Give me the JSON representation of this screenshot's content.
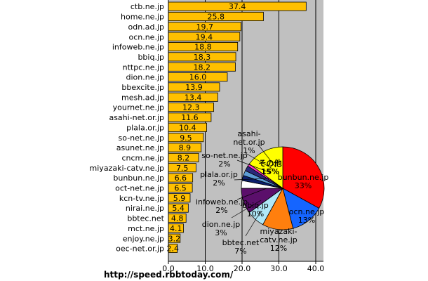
{
  "footer_url": "http://speed.rbbtoday.com/",
  "chart_data": [
    {
      "type": "bar",
      "orientation": "horizontal",
      "categories": [
        "ctb.ne.jp",
        "home.ne.jp",
        "odn.ad.jp",
        "ocn.ne.jp",
        "infoweb.ne.jp",
        "bbiq.jp",
        "nttpc.ne.jp",
        "dion.ne.jp",
        "bbexcite.jp",
        "mesh.ad.jp",
        "yournet.ne.jp",
        "asahi-net.or.jp",
        "plala.or.jp",
        "so-net.ne.jp",
        "asunet.ne.jp",
        "cncm.ne.jp",
        "miyazaki-catv.ne.jp",
        "bunbun.ne.jp",
        "oct-net.ne.jp",
        "kcn-tv.ne.jp",
        "nirai.ne.jp",
        "bbtec.net",
        "mct.ne.jp",
        "enjoy.ne.jp",
        "oec-net.or.jp"
      ],
      "values": [
        37.4,
        25.8,
        19.7,
        19.4,
        18.8,
        18.3,
        18.2,
        16.0,
        13.9,
        13.4,
        12.3,
        11.6,
        10.4,
        9.5,
        8.9,
        8.2,
        7.5,
        6.6,
        6.5,
        5.9,
        5.4,
        4.8,
        4.1,
        3.2,
        2.4
      ],
      "value_labels": [
        "37.4",
        "25.8",
        "19.7",
        "19.4",
        "18.8",
        "18.3",
        "18.2",
        "16.0",
        "13.9",
        "13.4",
        "12.3",
        "11.6",
        "10.4",
        "9.5",
        "8.9",
        "8.2",
        "7.5",
        "6.6",
        "6.5",
        "5.9",
        "5.4",
        "4.8",
        "4.1",
        "3.2",
        "2.4"
      ],
      "xlim": [
        0,
        42
      ],
      "xticks": [
        0,
        10,
        20,
        30,
        40
      ],
      "xtick_labels": [
        "0.0",
        "10.0",
        "20.0",
        "30.0",
        "40.0"
      ],
      "grid": true,
      "colors": {
        "bar": "#FFC000",
        "bar_border": "#000000",
        "plot_bg": "#C0C0C0"
      }
    },
    {
      "type": "pie",
      "slices": [
        {
          "label": "bunbun.ne.jp",
          "pct_label": "33%",
          "value": 33,
          "color": "#FF0000"
        },
        {
          "label": "ocn.ne.jp",
          "pct_label": "13%",
          "value": 13,
          "color": "#1565FF"
        },
        {
          "label": "miyazaki-\ncatv.ne.jp",
          "pct_label": "12%",
          "value": 12,
          "color": "#FF7F0E"
        },
        {
          "label": "bbtec.net",
          "pct_label": "7%",
          "value": 7,
          "color": "#B0E8F8"
        },
        {
          "label": "bbiq.jp",
          "pct_label": "10%",
          "value": 10,
          "color": "#5B0F6B"
        },
        {
          "label": "dion.ne.jp",
          "pct_label": "3%",
          "value": 3,
          "color": "#FFFFFF"
        },
        {
          "label": "infoweb.ne.jp",
          "pct_label": "2%",
          "value": 2,
          "color": "#0B1F6E"
        },
        {
          "label": "plala.or.jp",
          "pct_label": "2%",
          "value": 2,
          "color": "#5C9BD5"
        },
        {
          "label": "so-net.ne.jp",
          "pct_label": "2%",
          "value": 2,
          "color": "#2A2A7A"
        },
        {
          "label": "asahi-\nnet.or.jp",
          "pct_label": "1%",
          "value": 1,
          "color": "#FF33CC"
        },
        {
          "label": "その他",
          "pct_label": "15%",
          "value": 15,
          "color": "#FFFF00"
        }
      ]
    }
  ]
}
